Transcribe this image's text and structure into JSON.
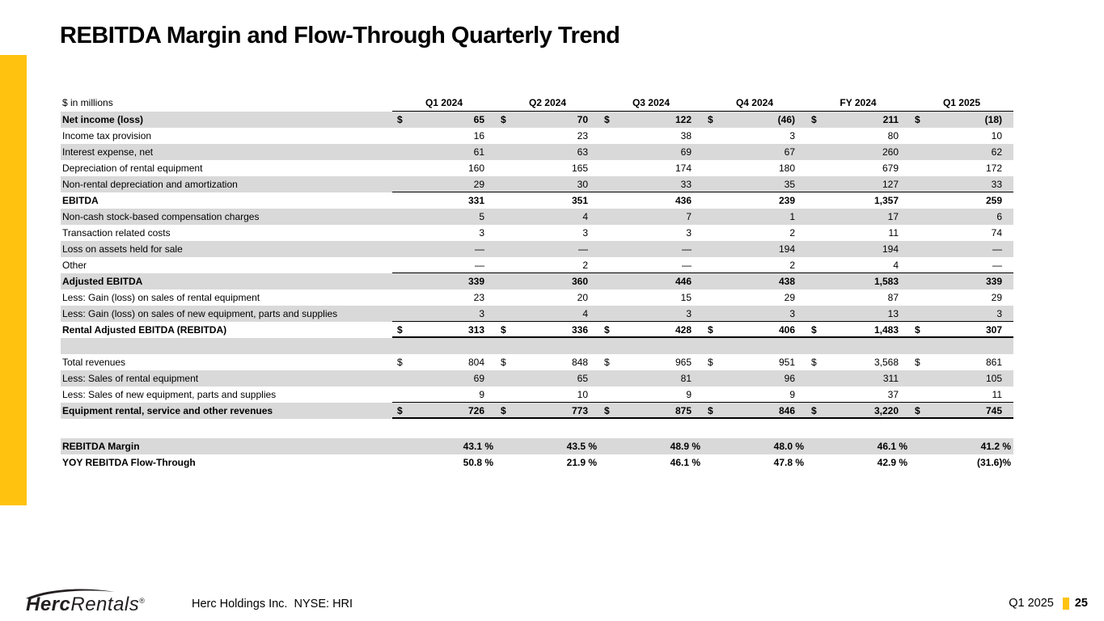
{
  "slide": {
    "title": "REBITDA Margin and Flow-Through Quarterly Trend",
    "accent_color": "#FFC20E",
    "stripe_color": "#D9D9D9"
  },
  "table": {
    "unit_label": "$ in millions",
    "columns": [
      "Q1 2024",
      "Q2 2024",
      "Q3 2024",
      "Q4 2024",
      "FY 2024",
      "Q1 2025"
    ],
    "rows": [
      {
        "name": "row-net-income",
        "label": "Net income (loss)",
        "bold": true,
        "dollar": true,
        "shade": true,
        "values": [
          "65",
          "70",
          "122",
          "(46)",
          "211",
          "(18)"
        ]
      },
      {
        "name": "row-income-tax",
        "label": "Income tax provision",
        "values": [
          "16",
          "23",
          "38",
          "3",
          "80",
          "10"
        ]
      },
      {
        "name": "row-interest-expense",
        "label": "Interest expense, net",
        "shade": true,
        "values": [
          "61",
          "63",
          "69",
          "67",
          "260",
          "62"
        ]
      },
      {
        "name": "row-depreciation-rental",
        "label": "Depreciation of rental equipment",
        "values": [
          "160",
          "165",
          "174",
          "180",
          "679",
          "172"
        ]
      },
      {
        "name": "row-nonrental-depreciation",
        "label": "Non-rental depreciation and amortization",
        "shade": true,
        "rule_below": true,
        "values": [
          "29",
          "30",
          "33",
          "35",
          "127",
          "33"
        ]
      },
      {
        "name": "row-ebitda",
        "label": "EBITDA",
        "bold": true,
        "values": [
          "331",
          "351",
          "436",
          "239",
          "1,357",
          "259"
        ]
      },
      {
        "name": "row-stock-comp",
        "label": "Non-cash stock-based compensation charges",
        "shade": true,
        "values": [
          "5",
          "4",
          "7",
          "1",
          "17",
          "6"
        ]
      },
      {
        "name": "row-transaction-costs",
        "label": "Transaction related costs",
        "values": [
          "3",
          "3",
          "3",
          "2",
          "11",
          "74"
        ]
      },
      {
        "name": "row-loss-assets-held",
        "label": "Loss on assets held for sale",
        "shade": true,
        "values": [
          "—",
          "—",
          "—",
          "194",
          "194",
          "—"
        ]
      },
      {
        "name": "row-other",
        "label": "Other",
        "rule_below": true,
        "values": [
          "—",
          "2",
          "—",
          "2",
          "4",
          "—"
        ]
      },
      {
        "name": "row-adjusted-ebitda",
        "label": "Adjusted EBITDA",
        "bold": true,
        "shade": true,
        "values": [
          "339",
          "360",
          "446",
          "438",
          "1,583",
          "339"
        ]
      },
      {
        "name": "row-less-gain-rental",
        "label": "Less: Gain (loss) on sales of rental equipment",
        "values": [
          "23",
          "20",
          "15",
          "29",
          "87",
          "29"
        ]
      },
      {
        "name": "row-less-gain-new",
        "label": "Less: Gain (loss) on sales of new equipment, parts and supplies",
        "shade": true,
        "rule_below": true,
        "values": [
          "3",
          "4",
          "3",
          "3",
          "13",
          "3"
        ]
      },
      {
        "name": "row-rental-adjusted-ebitda",
        "label": "Rental Adjusted EBITDA (REBITDA)",
        "bold": true,
        "dollar": true,
        "total_below": true,
        "values": [
          "313",
          "336",
          "428",
          "406",
          "1,483",
          "307"
        ]
      },
      {
        "name": "row-spacer-shaded",
        "label": "",
        "shade": true,
        "values": [
          "",
          "",
          "",
          "",
          "",
          ""
        ]
      },
      {
        "name": "row-total-revenues",
        "label": "Total revenues",
        "dollar": true,
        "values": [
          "804",
          "848",
          "965",
          "951",
          "3,568",
          "861"
        ]
      },
      {
        "name": "row-less-sales-rental",
        "label": "Less: Sales of rental equipment",
        "shade": true,
        "values": [
          "69",
          "65",
          "81",
          "96",
          "311",
          "105"
        ]
      },
      {
        "name": "row-less-sales-new",
        "label": "Less: Sales of new equipment, parts and supplies",
        "rule_below": true,
        "values": [
          "9",
          "10",
          "9",
          "9",
          "37",
          "11"
        ]
      },
      {
        "name": "row-equipment-rental-revenues",
        "label": "Equipment rental, service and other revenues",
        "bold": true,
        "dollar": true,
        "shade": true,
        "total_below": true,
        "values": [
          "726",
          "773",
          "875",
          "846",
          "3,220",
          "745"
        ]
      },
      {
        "name": "row-gap",
        "label": "",
        "gap": true,
        "values": []
      },
      {
        "name": "row-rebitda-margin",
        "label": "REBITDA Margin",
        "bold": true,
        "shade": true,
        "pct": true,
        "values": [
          "43.1 %",
          "43.5 %",
          "48.9 %",
          "48.0 %",
          "46.1 %",
          "41.2 %"
        ]
      },
      {
        "name": "row-yoy-flow-through",
        "label": "YOY REBITDA Flow-Through",
        "bold": true,
        "pct": true,
        "values": [
          "50.8 %",
          "21.9 %",
          "46.1 %",
          "47.8 %",
          "42.9 %",
          "(31.6)%"
        ]
      }
    ]
  },
  "footer": {
    "logo": {
      "bold": "Herc",
      "light": "Rentals",
      "reg": "®"
    },
    "company_line": "Herc Holdings Inc.  NYSE: HRI",
    "period": "Q1 2025",
    "page_number": "25"
  }
}
